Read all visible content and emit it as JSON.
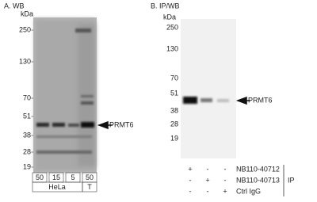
{
  "panel_a": {
    "label": "A. WB",
    "unit": "kDa",
    "markers": [
      "250",
      "130",
      "70",
      "51",
      "38",
      "28",
      "19"
    ],
    "target": "PRMT6",
    "lanes": [
      "50",
      "15",
      "5",
      "50"
    ],
    "samples": [
      "HeLa",
      "T"
    ]
  },
  "panel_b": {
    "label": "B. IP/WB",
    "unit": "kDa",
    "markers": [
      "250",
      "130",
      "70",
      "51",
      "38",
      "28",
      "19"
    ],
    "target": "PRMT6",
    "rows": [
      {
        "symbols": [
          "+",
          "-",
          "-"
        ],
        "label": "NB110-40712"
      },
      {
        "symbols": [
          "-",
          "+",
          "-"
        ],
        "label": "NB110-40713"
      },
      {
        "symbols": [
          "-",
          "-",
          "+"
        ],
        "label": "Ctrl IgG"
      }
    ],
    "group": "IP"
  }
}
